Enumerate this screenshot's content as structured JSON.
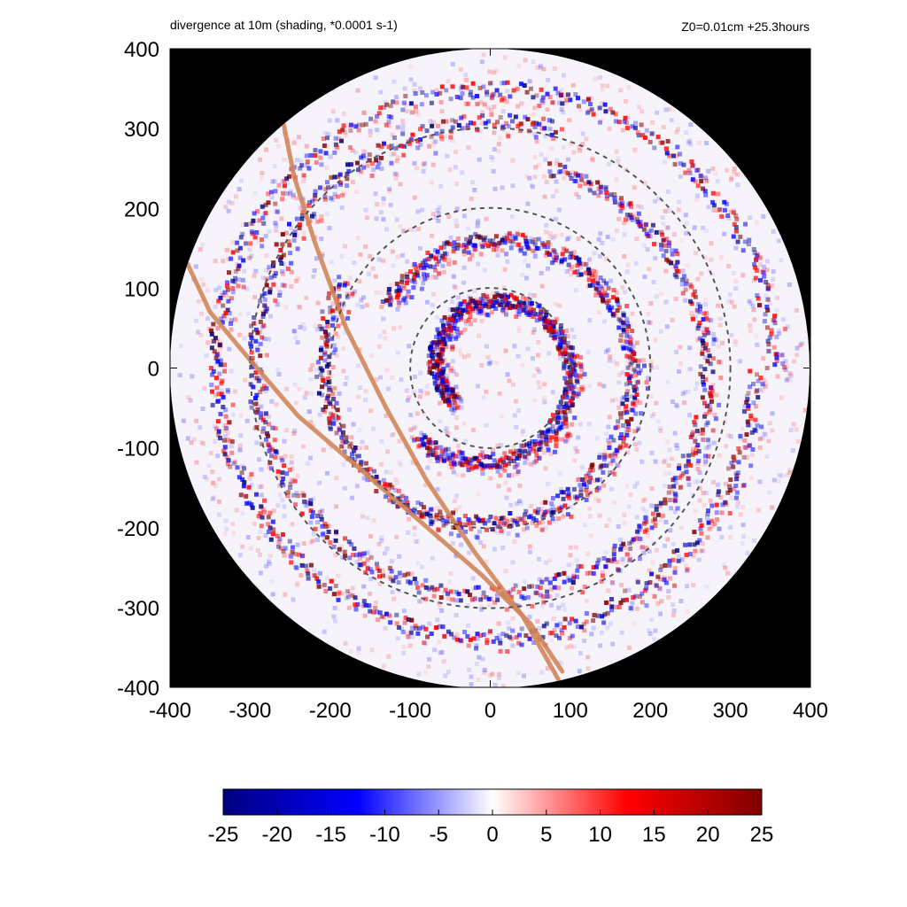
{
  "header": {
    "title": "divergence at 10m (shading, *0.0001 s-1)",
    "info": "Z0=0.01cm  +25.3hours"
  },
  "colors": {
    "outside_domain": "#000000",
    "neg_max": "#000080",
    "neg_mid": "#0000ff",
    "zero": "#ffffff",
    "pos_mid": "#ff0000",
    "pos_max": "#800000",
    "range_circles": "#555555",
    "track": "#d2875a"
  },
  "chart_data": {
    "type": "heatmap",
    "title": "divergence at 10m (shading, *0.0001 s-1)",
    "annotation": "Z0=0.01cm  +25.3hours",
    "xlim": [
      -400,
      400
    ],
    "ylim": [
      -400,
      400
    ],
    "x_ticks": [
      "-400",
      "-300",
      "-200",
      "-100",
      "0",
      "100",
      "200",
      "300",
      "400"
    ],
    "y_ticks": [
      "400",
      "300",
      "200",
      "100",
      "0",
      "-100",
      "-200",
      "-300",
      "-400"
    ],
    "domain_radius": 400,
    "range_circle_radii": [
      100,
      200,
      300
    ],
    "colorbar": {
      "min": -25,
      "max": 25,
      "ticks": [
        "-25",
        "-20",
        "-15",
        "-10",
        "-5",
        "0",
        "5",
        "10",
        "15",
        "20",
        "25"
      ]
    },
    "tracks": [
      {
        "points": [
          [
            -258,
            305
          ],
          [
            -245,
            240
          ],
          [
            -220,
            160
          ],
          [
            -180,
            50
          ],
          [
            -130,
            -50
          ],
          [
            -80,
            -140
          ],
          [
            -20,
            -230
          ],
          [
            40,
            -310
          ],
          [
            85,
            -390
          ]
        ]
      },
      {
        "points": [
          [
            -378,
            130
          ],
          [
            -350,
            70
          ],
          [
            -300,
            10
          ],
          [
            -240,
            -60
          ],
          [
            -170,
            -120
          ],
          [
            -90,
            -190
          ],
          [
            -10,
            -260
          ],
          [
            50,
            -320
          ],
          [
            90,
            -380
          ]
        ]
      }
    ]
  }
}
